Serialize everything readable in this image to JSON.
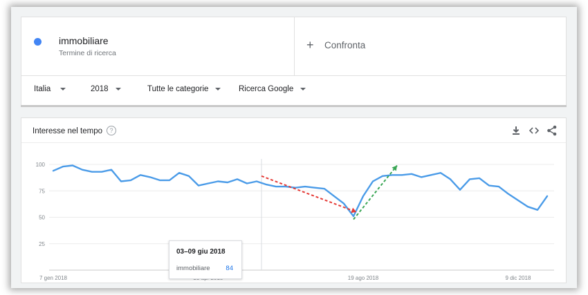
{
  "search_term": {
    "name": "immobiliare",
    "subtitle": "Termine di ricerca",
    "color": "#4285f4"
  },
  "compare": {
    "label": "Confronta"
  },
  "filters": [
    {
      "label": "Italia"
    },
    {
      "label": "2018"
    },
    {
      "label": "Tutte le categorie"
    },
    {
      "label": "Ricerca Google"
    }
  ],
  "chart_header": {
    "title": "Interesse nel tempo"
  },
  "icons": [
    "help-icon",
    "download-icon",
    "embed-icon",
    "share-icon"
  ],
  "tooltip": {
    "date": "03–09 giu 2018",
    "term": "immobiliare",
    "value": "84"
  },
  "chart_data": {
    "type": "line",
    "title": "",
    "xlabel": "",
    "ylabel": "",
    "ylim": [
      0,
      100
    ],
    "yticks": [
      "100",
      "75",
      "50",
      "25"
    ],
    "ytick_values": [
      100,
      75,
      50,
      25
    ],
    "xtick_labels": [
      "7 gen 2018",
      "29 apr 2018",
      "19 ago 2018",
      "9 dic 2018"
    ],
    "xtick_weeks": [
      0,
      16,
      32,
      48
    ],
    "grid": true,
    "line_color": "#4a9be8",
    "series": [
      {
        "name": "immobiliare",
        "values": [
          94,
          98,
          99,
          95,
          93,
          93,
          95,
          84,
          85,
          90,
          88,
          85,
          85,
          92,
          89,
          80,
          82,
          84,
          83,
          86,
          82,
          84,
          81,
          79,
          79,
          78,
          79,
          78,
          77,
          70,
          63,
          51,
          70,
          84,
          89,
          90,
          90,
          91,
          88,
          90,
          92,
          86,
          76,
          86,
          87,
          80,
          79,
          72,
          66,
          60,
          57,
          70
        ]
      }
    ],
    "annotations": [
      {
        "type": "arrow",
        "style": "dashed",
        "color": "#e53935",
        "from": {
          "week": 21.5,
          "value": 89
        },
        "to": {
          "week": 31.3,
          "value": 55
        }
      },
      {
        "type": "arrow",
        "style": "dashed",
        "color": "#3aa655",
        "from": {
          "week": 31,
          "value": 48
        },
        "to": {
          "week": 35.5,
          "value": 99
        }
      }
    ],
    "hover_week": 21.5
  }
}
